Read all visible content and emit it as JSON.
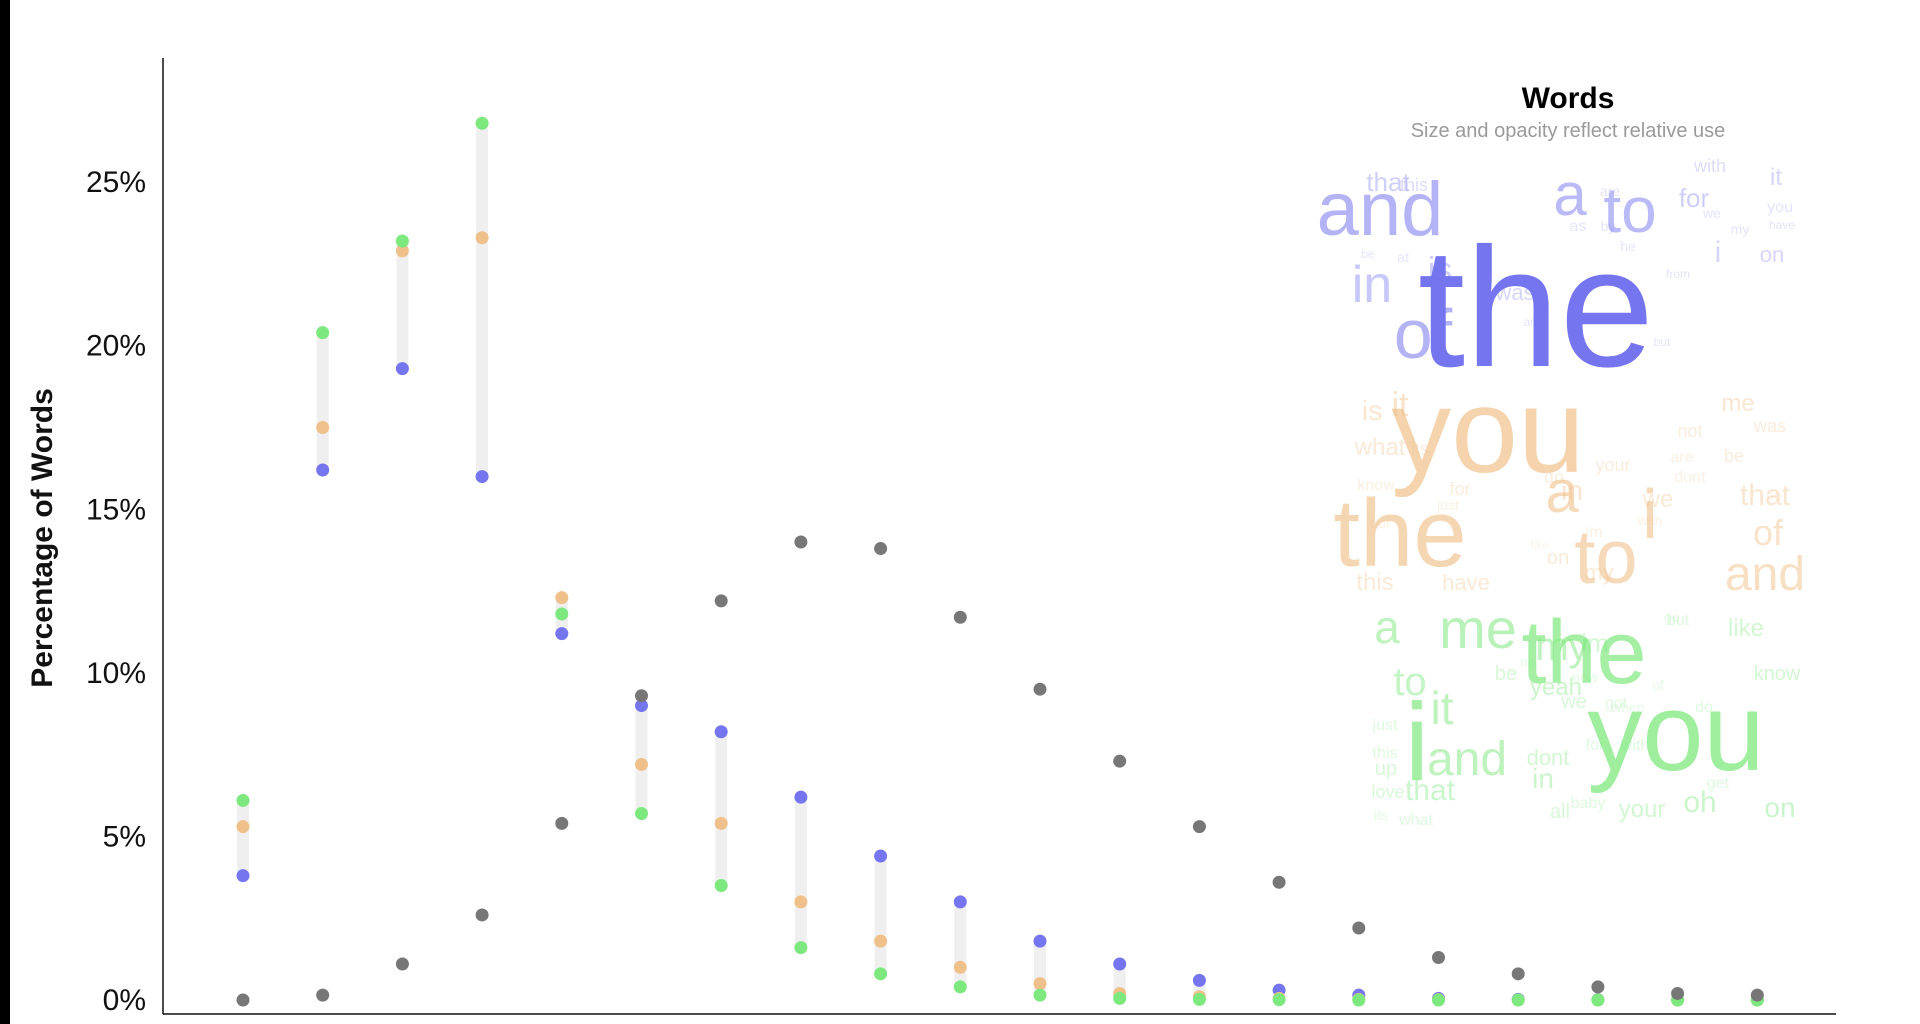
{
  "chart_data": {
    "type": "scatter",
    "ylabel": "Percentage of Words",
    "y_ticks": [
      "0%",
      "5%",
      "10%",
      "15%",
      "20%",
      "25%"
    ],
    "ylim": [
      0,
      30
    ],
    "x_count": 20,
    "grid": false,
    "range_bar_color": "#efefef",
    "series": [
      {
        "color": "#7475ef",
        "values": [
          3.8,
          16.2,
          19.3,
          16.0,
          11.2,
          9.0,
          8.2,
          6.2,
          4.4,
          3.0,
          1.8,
          1.1,
          0.6,
          0.3,
          0.15,
          0.05,
          0.02,
          0.01,
          0.0,
          0.0
        ]
      },
      {
        "color": "#f0c08a",
        "values": [
          5.3,
          17.5,
          22.9,
          23.3,
          12.3,
          7.2,
          5.4,
          3.0,
          1.8,
          1.0,
          0.5,
          0.2,
          0.1,
          0.05,
          0.02,
          0.01,
          0.0,
          0.0,
          0.0,
          0.0
        ]
      },
      {
        "color": "#7de87e",
        "values": [
          6.1,
          20.4,
          23.2,
          26.8,
          11.8,
          5.7,
          3.5,
          1.6,
          0.8,
          0.4,
          0.15,
          0.05,
          0.02,
          0.01,
          0.0,
          0.0,
          0.0,
          0.0,
          0.0,
          0.0
        ]
      },
      {
        "color": "#777777",
        "values": [
          0.0,
          0.15,
          1.1,
          2.6,
          5.4,
          9.3,
          12.2,
          14.0,
          13.8,
          11.7,
          9.5,
          7.3,
          5.3,
          3.6,
          2.2,
          1.3,
          0.8,
          0.4,
          0.2,
          0.15
        ]
      }
    ]
  },
  "word_cloud": {
    "title": "Words",
    "subtitle": "Size and opacity reflect relative use",
    "groups": [
      {
        "color": "#7475ef",
        "words": [
          {
            "text": "the",
            "size": 170,
            "opacity": 1.0
          },
          {
            "text": "and",
            "size": 76,
            "opacity": 0.55
          },
          {
            "text": "a",
            "size": 60,
            "opacity": 0.5
          },
          {
            "text": "to",
            "size": 64,
            "opacity": 0.5
          },
          {
            "text": "of",
            "size": 70,
            "opacity": 0.55
          },
          {
            "text": "in",
            "size": 52,
            "opacity": 0.4
          },
          {
            "text": "is",
            "size": 34,
            "opacity": 0.35
          },
          {
            "text": "that",
            "size": 26,
            "opacity": 0.35
          },
          {
            "text": "for",
            "size": 26,
            "opacity": 0.35
          },
          {
            "text": "i",
            "size": 30,
            "opacity": 0.3
          },
          {
            "text": "it",
            "size": 24,
            "opacity": 0.3
          },
          {
            "text": "on",
            "size": 22,
            "opacity": 0.3
          },
          {
            "text": "was",
            "size": 22,
            "opacity": 0.3
          },
          {
            "text": "this",
            "size": 18,
            "opacity": 0.25
          },
          {
            "text": "with",
            "size": 18,
            "opacity": 0.25
          },
          {
            "text": "are",
            "size": 14,
            "opacity": 0.2
          },
          {
            "text": "as",
            "size": 16,
            "opacity": 0.2
          },
          {
            "text": "by",
            "size": 14,
            "opacity": 0.2
          },
          {
            "text": "we",
            "size": 14,
            "opacity": 0.2
          },
          {
            "text": "you",
            "size": 16,
            "opacity": 0.2
          },
          {
            "text": "my",
            "size": 14,
            "opacity": 0.2
          },
          {
            "text": "have",
            "size": 12,
            "opacity": 0.2
          },
          {
            "text": "he",
            "size": 14,
            "opacity": 0.2
          },
          {
            "text": "at",
            "size": 14,
            "opacity": 0.2
          },
          {
            "text": "be",
            "size": 12,
            "opacity": 0.2
          },
          {
            "text": "from",
            "size": 12,
            "opacity": 0.2
          },
          {
            "text": "but",
            "size": 12,
            "opacity": 0.2
          },
          {
            "text": "an",
            "size": 12,
            "opacity": 0.2
          }
        ]
      },
      {
        "color": "#f0c08a",
        "words": [
          {
            "text": "you",
            "size": 120,
            "opacity": 0.7
          },
          {
            "text": "the",
            "size": 96,
            "opacity": 0.65
          },
          {
            "text": "a",
            "size": 60,
            "opacity": 0.6
          },
          {
            "text": "i",
            "size": 70,
            "opacity": 0.6
          },
          {
            "text": "to",
            "size": 76,
            "opacity": 0.6
          },
          {
            "text": "and",
            "size": 48,
            "opacity": 0.5
          },
          {
            "text": "of",
            "size": 36,
            "opacity": 0.45
          },
          {
            "text": "it",
            "size": 34,
            "opacity": 0.45
          },
          {
            "text": "is",
            "size": 28,
            "opacity": 0.4
          },
          {
            "text": "in",
            "size": 28,
            "opacity": 0.4
          },
          {
            "text": "me",
            "size": 24,
            "opacity": 0.4
          },
          {
            "text": "that",
            "size": 30,
            "opacity": 0.4
          },
          {
            "text": "what",
            "size": 24,
            "opacity": 0.35
          },
          {
            "text": "we",
            "size": 24,
            "opacity": 0.35
          },
          {
            "text": "this",
            "size": 24,
            "opacity": 0.35
          },
          {
            "text": "have",
            "size": 22,
            "opacity": 0.35
          },
          {
            "text": "my",
            "size": 22,
            "opacity": 0.35
          },
          {
            "text": "on",
            "size": 20,
            "opacity": 0.35
          },
          {
            "text": "not",
            "size": 18,
            "opacity": 0.3
          },
          {
            "text": "was",
            "size": 18,
            "opacity": 0.3
          },
          {
            "text": "your",
            "size": 18,
            "opacity": 0.3
          },
          {
            "text": "be",
            "size": 18,
            "opacity": 0.3
          },
          {
            "text": "its",
            "size": 18,
            "opacity": 0.3
          },
          {
            "text": "do",
            "size": 18,
            "opacity": 0.3
          },
          {
            "text": "for",
            "size": 18,
            "opacity": 0.3
          },
          {
            "text": "know",
            "size": 16,
            "opacity": 0.25
          },
          {
            "text": "dont",
            "size": 16,
            "opacity": 0.25
          },
          {
            "text": "are",
            "size": 16,
            "opacity": 0.25
          },
          {
            "text": "im",
            "size": 16,
            "opacity": 0.25
          },
          {
            "text": "with",
            "size": 14,
            "opacity": 0.25
          },
          {
            "text": "just",
            "size": 14,
            "opacity": 0.25
          },
          {
            "text": "but",
            "size": 14,
            "opacity": 0.25
          },
          {
            "text": "like",
            "size": 12,
            "opacity": 0.2
          },
          {
            "text": "no",
            "size": 14,
            "opacity": 0.2
          }
        ]
      },
      {
        "color": "#7de87e",
        "words": [
          {
            "text": "you",
            "size": 110,
            "opacity": 0.75
          },
          {
            "text": "the",
            "size": 90,
            "opacity": 0.7
          },
          {
            "text": "i",
            "size": 110,
            "opacity": 0.7
          },
          {
            "text": "me",
            "size": 56,
            "opacity": 0.55
          },
          {
            "text": "a",
            "size": 46,
            "opacity": 0.5
          },
          {
            "text": "my",
            "size": 40,
            "opacity": 0.5
          },
          {
            "text": "and",
            "size": 48,
            "opacity": 0.5
          },
          {
            "text": "it",
            "size": 46,
            "opacity": 0.5
          },
          {
            "text": "to",
            "size": 40,
            "opacity": 0.45
          },
          {
            "text": "in",
            "size": 28,
            "opacity": 0.4
          },
          {
            "text": "on",
            "size": 28,
            "opacity": 0.4
          },
          {
            "text": "oh",
            "size": 30,
            "opacity": 0.4
          },
          {
            "text": "that",
            "size": 30,
            "opacity": 0.4
          },
          {
            "text": "yeah",
            "size": 24,
            "opacity": 0.4
          },
          {
            "text": "like",
            "size": 24,
            "opacity": 0.35
          },
          {
            "text": "know",
            "size": 20,
            "opacity": 0.35
          },
          {
            "text": "im",
            "size": 26,
            "opacity": 0.35
          },
          {
            "text": "dont",
            "size": 22,
            "opacity": 0.35
          },
          {
            "text": "your",
            "size": 24,
            "opacity": 0.35
          },
          {
            "text": "be",
            "size": 20,
            "opacity": 0.3
          },
          {
            "text": "we",
            "size": 20,
            "opacity": 0.3
          },
          {
            "text": "all",
            "size": 20,
            "opacity": 0.3
          },
          {
            "text": "love",
            "size": 18,
            "opacity": 0.3
          },
          {
            "text": "up",
            "size": 20,
            "opacity": 0.3
          },
          {
            "text": "got",
            "size": 16,
            "opacity": 0.25
          },
          {
            "text": "for",
            "size": 16,
            "opacity": 0.25
          },
          {
            "text": "just",
            "size": 16,
            "opacity": 0.25
          },
          {
            "text": "baby",
            "size": 16,
            "opacity": 0.25
          },
          {
            "text": "this",
            "size": 16,
            "opacity": 0.25
          },
          {
            "text": "what",
            "size": 16,
            "opacity": 0.25
          },
          {
            "text": "get",
            "size": 16,
            "opacity": 0.25
          },
          {
            "text": "with",
            "size": 16,
            "opacity": 0.25
          },
          {
            "text": "but",
            "size": 16,
            "opacity": 0.25
          },
          {
            "text": "do",
            "size": 16,
            "opacity": 0.25
          },
          {
            "text": "no",
            "size": 14,
            "opacity": 0.2
          },
          {
            "text": "go",
            "size": 14,
            "opacity": 0.2
          },
          {
            "text": "now",
            "size": 14,
            "opacity": 0.2
          },
          {
            "text": "when",
            "size": 14,
            "opacity": 0.2
          },
          {
            "text": "of",
            "size": 14,
            "opacity": 0.2
          },
          {
            "text": "its",
            "size": 14,
            "opacity": 0.2
          }
        ]
      }
    ]
  }
}
